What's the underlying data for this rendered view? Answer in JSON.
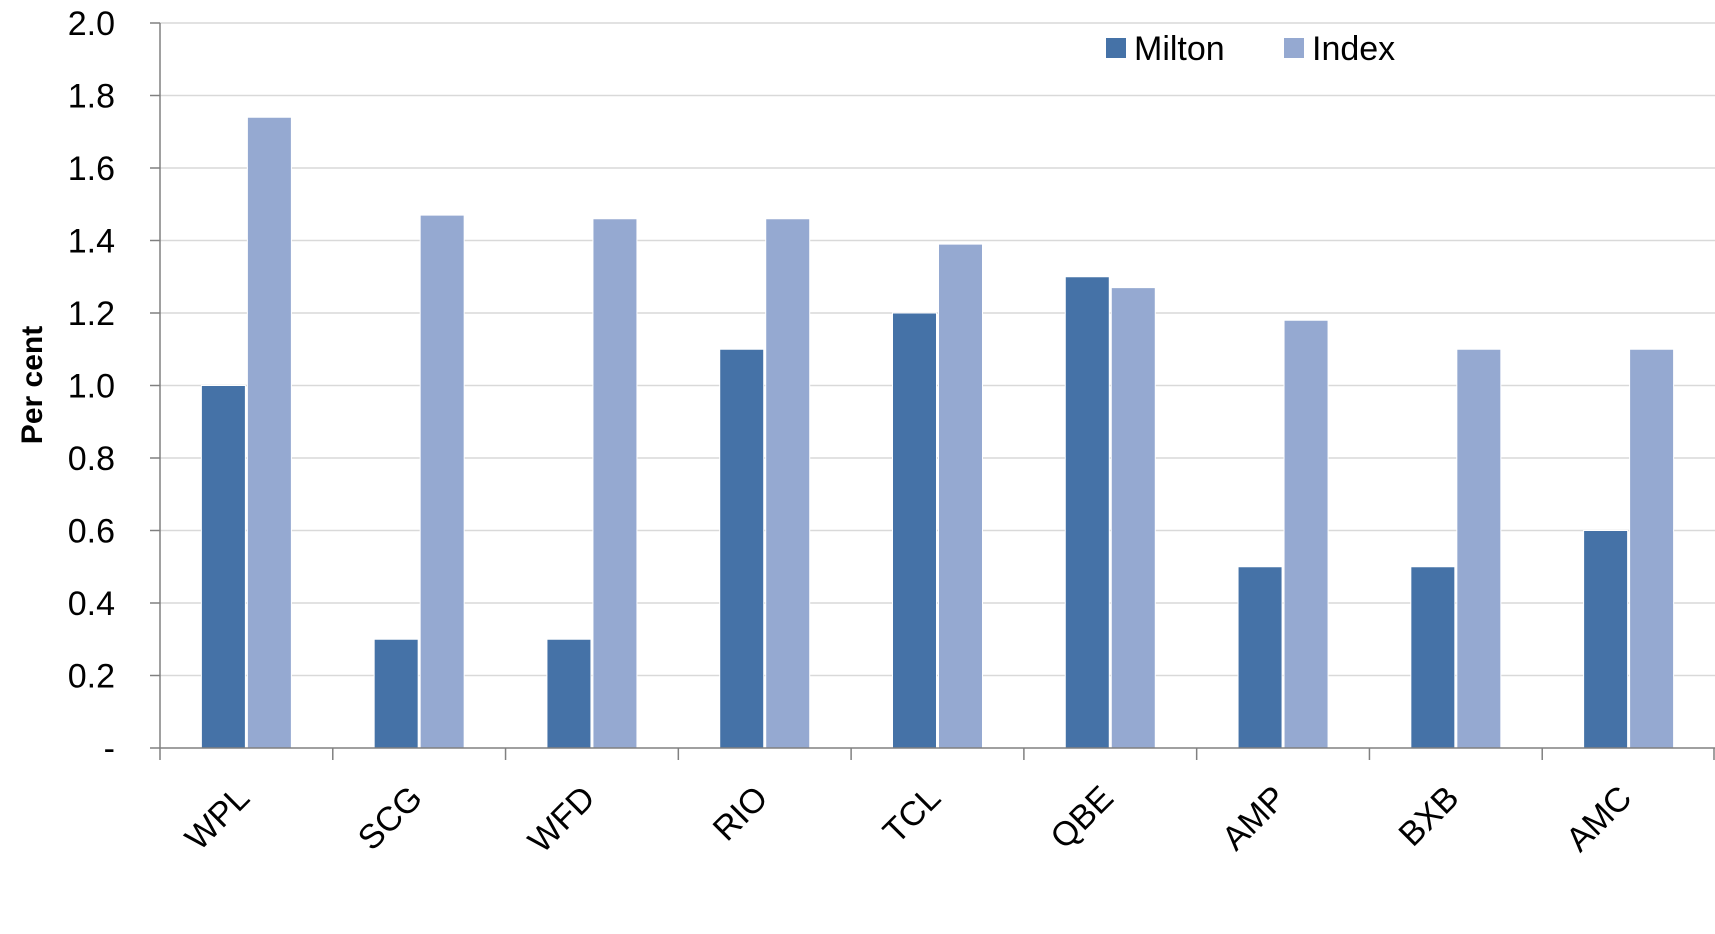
{
  "chart_data": {
    "type": "bar",
    "categories": [
      "WPL",
      "SCG",
      "WFD",
      "RIO",
      "TCL",
      "QBE",
      "AMP",
      "BXB",
      "AMC"
    ],
    "series": [
      {
        "name": "Milton",
        "color": "#4572A7",
        "values": [
          1.0,
          0.3,
          0.3,
          1.1,
          1.2,
          1.3,
          0.5,
          0.5,
          0.6
        ]
      },
      {
        "name": "Index",
        "color": "#95A9D1",
        "values": [
          1.74,
          1.47,
          1.46,
          1.46,
          1.39,
          1.27,
          1.18,
          1.1,
          1.1
        ]
      }
    ],
    "ylabel": "Per cent",
    "ylim": [
      0,
      2.0
    ],
    "yticks": [
      {
        "value": 0,
        "label": "-"
      },
      {
        "value": 0.2,
        "label": "0.2"
      },
      {
        "value": 0.4,
        "label": "0.4"
      },
      {
        "value": 0.6,
        "label": "0.6"
      },
      {
        "value": 0.8,
        "label": "0.8"
      },
      {
        "value": 1.0,
        "label": "1.0"
      },
      {
        "value": 1.2,
        "label": "1.2"
      },
      {
        "value": 1.4,
        "label": "1.4"
      },
      {
        "value": 1.6,
        "label": "1.6"
      },
      {
        "value": 1.8,
        "label": "1.8"
      },
      {
        "value": 2.0,
        "label": "2.0"
      }
    ],
    "grid": true,
    "legend": "top-right",
    "gridColor": "#D9D9D9",
    "axisColor": "#808080"
  }
}
